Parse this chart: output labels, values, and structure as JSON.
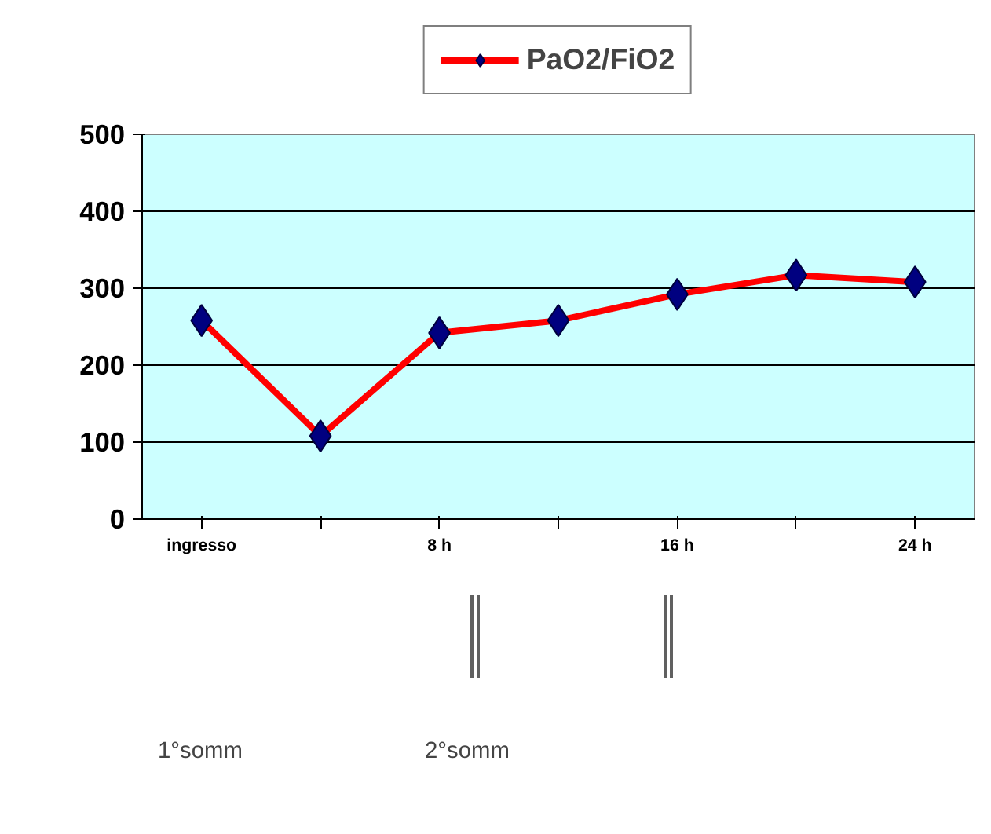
{
  "chart_data": {
    "type": "line",
    "categories": [
      "ingresso",
      null,
      "8 h",
      null,
      "16 h",
      null,
      "24 h"
    ],
    "series": [
      {
        "name": "PaO2/FiO2",
        "color": "#ff0000",
        "values": [
          258,
          108,
          242,
          258,
          292,
          317,
          308
        ]
      }
    ],
    "ylim": [
      0,
      500
    ],
    "yticks": [
      0,
      100,
      200,
      300,
      400,
      500
    ],
    "grid": "y",
    "legend": "top",
    "marker": "diamond",
    "line_style": "solid",
    "annotations": [
      "1°somm",
      "2°somm"
    ]
  }
}
